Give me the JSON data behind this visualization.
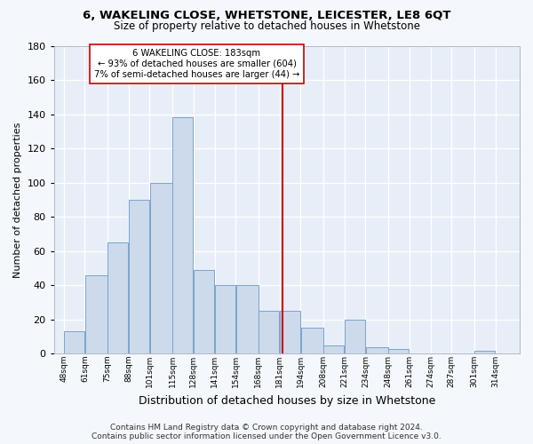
{
  "title1": "6, WAKELING CLOSE, WHETSTONE, LEICESTER, LE8 6QT",
  "title2": "Size of property relative to detached houses in Whetstone",
  "xlabel": "Distribution of detached houses by size in Whetstone",
  "ylabel": "Number of detached properties",
  "bin_labels": [
    "48sqm",
    "61sqm",
    "75sqm",
    "88sqm",
    "101sqm",
    "115sqm",
    "128sqm",
    "141sqm",
    "154sqm",
    "168sqm",
    "181sqm",
    "194sqm",
    "208sqm",
    "221sqm",
    "234sqm",
    "248sqm",
    "261sqm",
    "274sqm",
    "287sqm",
    "301sqm",
    "314sqm"
  ],
  "bar_values": [
    13,
    46,
    65,
    90,
    100,
    138,
    49,
    40,
    40,
    25,
    25,
    15,
    5,
    20,
    4,
    3,
    0,
    0,
    0,
    2,
    0
  ],
  "bar_color": "#ccdaeb",
  "bar_edge_color": "#7ba3cc",
  "vline_color": "#cc0000",
  "annotation_text": "6 WAKELING CLOSE: 183sqm\n← 93% of detached houses are smaller (604)\n7% of semi-detached houses are larger (44) →",
  "annotation_box_color": "#ffffff",
  "annotation_box_edge": "#cc0000",
  "ylim": [
    0,
    180
  ],
  "yticks": [
    0,
    20,
    40,
    60,
    80,
    100,
    120,
    140,
    160,
    180
  ],
  "footer": "Contains HM Land Registry data © Crown copyright and database right 2024.\nContains public sector information licensed under the Open Government Licence v3.0.",
  "bg_color": "#f4f7fb",
  "plot_bg_color": "#e8eef8",
  "title1_fontsize": 9.5,
  "title2_fontsize": 8.5
}
